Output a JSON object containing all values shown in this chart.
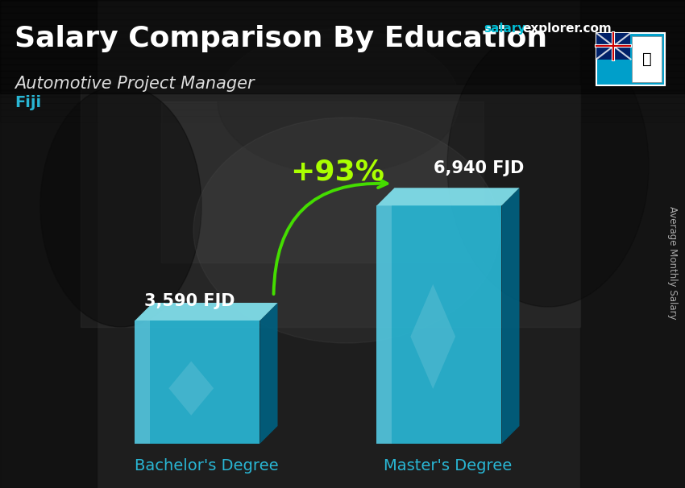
{
  "title": "Salary Comparison By Education",
  "subtitle": "Automotive Project Manager",
  "country": "Fiji",
  "categories": [
    "Bachelor's Degree",
    "Master's Degree"
  ],
  "values": [
    3590,
    6940
  ],
  "value_labels": [
    "3,590 FJD",
    "6,940 FJD"
  ],
  "bar_front_color": "#29b6d4",
  "bar_side_color": "#006080",
  "bar_top_color": "#80deea",
  "percent_label": "+93%",
  "percent_color": "#aaff00",
  "arrow_color": "#44dd00",
  "ylabel": "Average Monthly Salary",
  "website_text": "salaryexplorer.com",
  "website_color_salary": "#00bcd4",
  "website_color_rest": "#ffffff",
  "title_color": "#ffffff",
  "subtitle_color": "#dddddd",
  "country_color": "#29b6d4",
  "xlabel_color": "#29b6d4",
  "value_label_color": "#ffffff",
  "bg_top_color": "#1a1a1a",
  "bg_bottom_color": "#2a2a2a",
  "ylim_max": 8800
}
